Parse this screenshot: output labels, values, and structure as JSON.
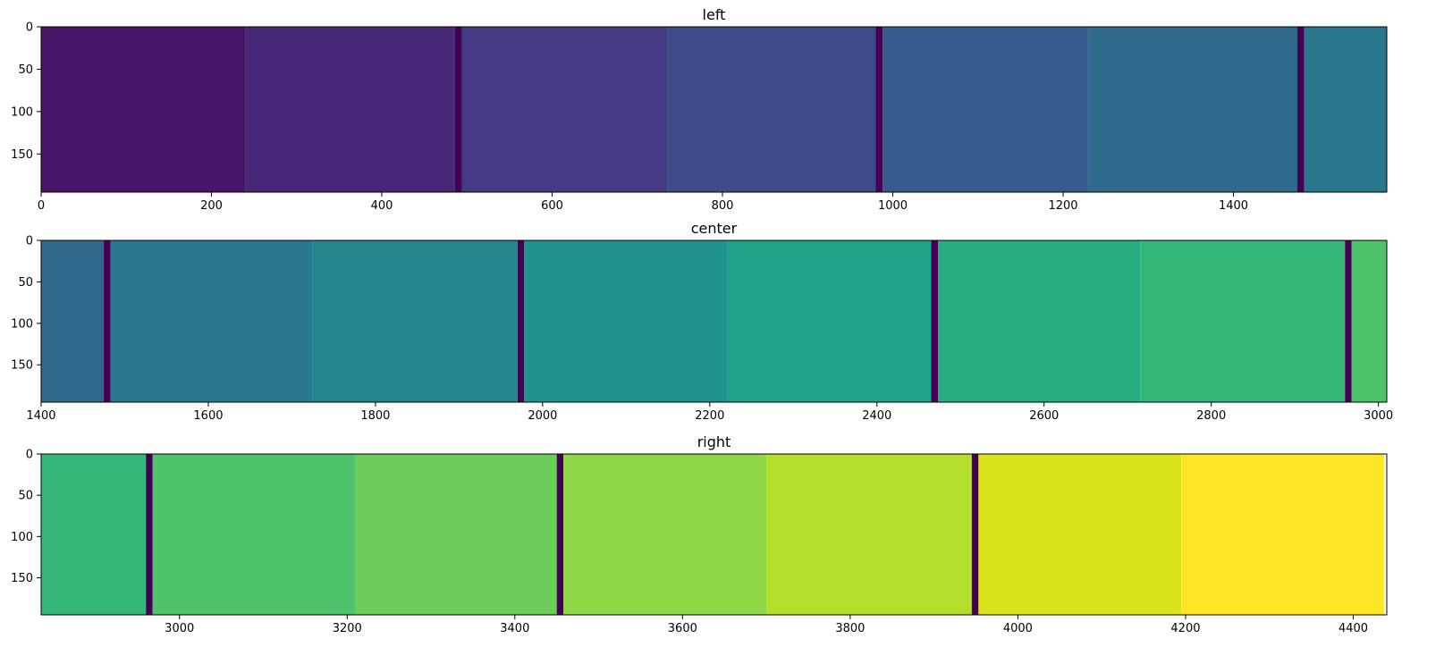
{
  "chart_data": [
    {
      "type": "heatmap",
      "title": "left",
      "xlim": [
        0,
        1580
      ],
      "ylim": [
        195,
        0
      ],
      "x_ticks": [
        0,
        200,
        400,
        600,
        800,
        1000,
        1200,
        1400
      ],
      "y_ticks": [
        0,
        50,
        100,
        150
      ],
      "grid": false,
      "bands": [
        {
          "x0": 0,
          "x1": 240,
          "color": "#481467"
        },
        {
          "x0": 240,
          "x1": 486,
          "color": "#472878"
        },
        {
          "x0": 486,
          "x1": 494,
          "color": "#440154"
        },
        {
          "x0": 494,
          "x1": 735,
          "color": "#453a84"
        },
        {
          "x0": 735,
          "x1": 980,
          "color": "#3e4c8a"
        },
        {
          "x0": 980,
          "x1": 988,
          "color": "#440154"
        },
        {
          "x0": 988,
          "x1": 1230,
          "color": "#375b8d"
        },
        {
          "x0": 1230,
          "x1": 1475,
          "color": "#2f6a8d"
        },
        {
          "x0": 1475,
          "x1": 1483,
          "color": "#440154"
        },
        {
          "x0": 1483,
          "x1": 1580,
          "color": "#29788e"
        }
      ]
    },
    {
      "type": "heatmap",
      "title": "center",
      "xlim": [
        1400,
        3010
      ],
      "ylim": [
        195,
        0
      ],
      "x_ticks": [
        1400,
        1600,
        1800,
        2000,
        2200,
        2400,
        2600,
        2800,
        3000
      ],
      "y_ticks": [
        0,
        50,
        100,
        150
      ],
      "grid": false,
      "bands": [
        {
          "x0": 1400,
          "x1": 1475,
          "color": "#2f6a8d"
        },
        {
          "x0": 1475,
          "x1": 1483,
          "color": "#440154"
        },
        {
          "x0": 1483,
          "x1": 1725,
          "color": "#29788e"
        },
        {
          "x0": 1725,
          "x1": 1970,
          "color": "#25858e"
        },
        {
          "x0": 1970,
          "x1": 1978,
          "color": "#440154"
        },
        {
          "x0": 1978,
          "x1": 2220,
          "color": "#20928c"
        },
        {
          "x0": 2220,
          "x1": 2465,
          "color": "#1fa088"
        },
        {
          "x0": 2465,
          "x1": 2473,
          "color": "#440154"
        },
        {
          "x0": 2473,
          "x1": 2715,
          "color": "#27ad81"
        },
        {
          "x0": 2715,
          "x1": 2960,
          "color": "#35b779"
        },
        {
          "x0": 2960,
          "x1": 2968,
          "color": "#440154"
        },
        {
          "x0": 2968,
          "x1": 3010,
          "color": "#4ec36b"
        }
      ]
    },
    {
      "type": "heatmap",
      "title": "right",
      "xlim": [
        2835,
        4440
      ],
      "ylim": [
        195,
        0
      ],
      "x_ticks": [
        3000,
        3200,
        3400,
        3600,
        3800,
        4000,
        4200,
        4400
      ],
      "y_ticks": [
        0,
        50,
        100,
        150
      ],
      "grid": false,
      "bands": [
        {
          "x0": 2835,
          "x1": 2960,
          "color": "#35b779"
        },
        {
          "x0": 2960,
          "x1": 2968,
          "color": "#440154"
        },
        {
          "x0": 2968,
          "x1": 3210,
          "color": "#4ec36b"
        },
        {
          "x0": 3210,
          "x1": 3450,
          "color": "#6ccd5a"
        },
        {
          "x0": 3450,
          "x1": 3458,
          "color": "#440154"
        },
        {
          "x0": 3458,
          "x1": 3700,
          "color": "#8fd744"
        },
        {
          "x0": 3700,
          "x1": 3945,
          "color": "#b4de2c"
        },
        {
          "x0": 3945,
          "x1": 3953,
          "color": "#440154"
        },
        {
          "x0": 3953,
          "x1": 4195,
          "color": "#dae319"
        },
        {
          "x0": 4195,
          "x1": 4437,
          "color": "#fde725"
        }
      ]
    }
  ]
}
